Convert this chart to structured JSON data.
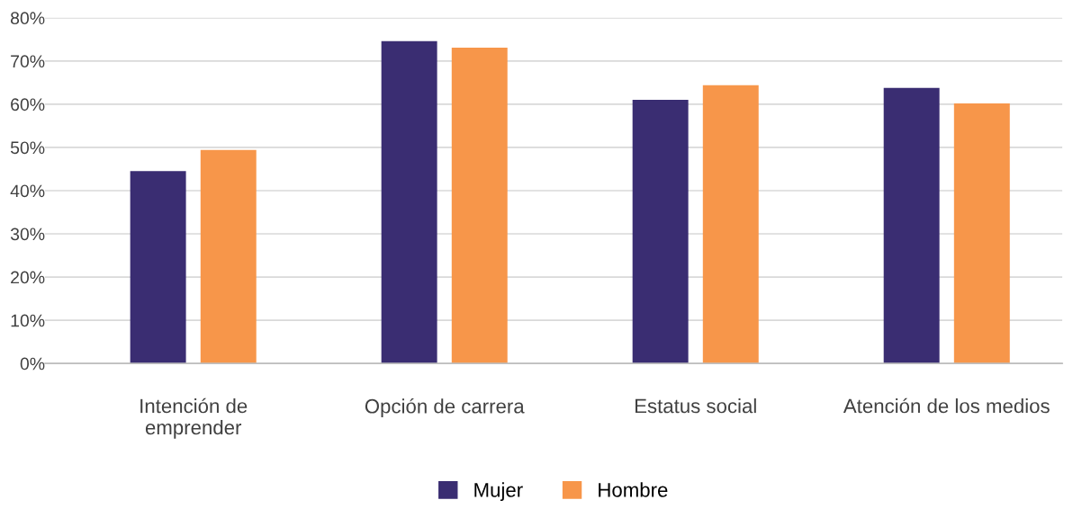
{
  "chart_data": {
    "type": "bar",
    "categories": [
      "Intención de\nemprender",
      "Opción de carrera",
      "Estatus social",
      "Atención de los medios"
    ],
    "series": [
      {
        "name": "Mujer",
        "color": "#3a2d72",
        "values": [
          44.5,
          74.6,
          61.0,
          63.8
        ]
      },
      {
        "name": "Hombre",
        "color": "#f7964a",
        "values": [
          49.4,
          73.1,
          64.4,
          60.2
        ]
      }
    ],
    "ylim": [
      0,
      80
    ],
    "yticks": [
      {
        "value": 0,
        "label": "0%"
      },
      {
        "value": 10,
        "label": "10%"
      },
      {
        "value": 20,
        "label": "20%"
      },
      {
        "value": 30,
        "label": "30%"
      },
      {
        "value": 40,
        "label": "40%"
      },
      {
        "value": 50,
        "label": "50%"
      },
      {
        "value": 60,
        "label": "60%"
      },
      {
        "value": 70,
        "label": "70%"
      },
      {
        "value": 80,
        "label": "80%"
      }
    ],
    "grid": "y",
    "legend": "bottom"
  }
}
